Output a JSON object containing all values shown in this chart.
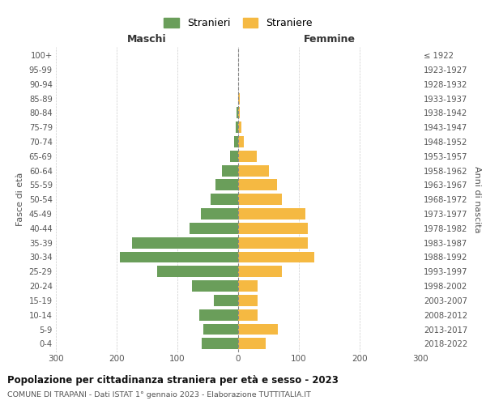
{
  "age_groups": [
    "0-4",
    "5-9",
    "10-14",
    "15-19",
    "20-24",
    "25-29",
    "30-34",
    "35-39",
    "40-44",
    "45-49",
    "50-54",
    "55-59",
    "60-64",
    "65-69",
    "70-74",
    "75-79",
    "80-84",
    "85-89",
    "90-94",
    "95-99",
    "100+"
  ],
  "birth_years": [
    "2018-2022",
    "2013-2017",
    "2008-2012",
    "2003-2007",
    "1998-2002",
    "1993-1997",
    "1988-1992",
    "1983-1987",
    "1978-1982",
    "1973-1977",
    "1968-1972",
    "1963-1967",
    "1958-1962",
    "1953-1957",
    "1948-1952",
    "1943-1947",
    "1938-1942",
    "1933-1937",
    "1928-1932",
    "1923-1927",
    "≤ 1922"
  ],
  "maschi": [
    60,
    57,
    64,
    40,
    76,
    133,
    195,
    175,
    80,
    62,
    46,
    37,
    27,
    13,
    7,
    4,
    3,
    0,
    0,
    0,
    0
  ],
  "femmine": [
    45,
    65,
    32,
    32,
    32,
    72,
    125,
    115,
    115,
    110,
    72,
    64,
    50,
    30,
    9,
    5,
    3,
    2,
    0,
    0,
    0
  ],
  "maschi_color": "#6a9e5a",
  "femmine_color": "#f5b942",
  "background_color": "#ffffff",
  "grid_color": "#cccccc",
  "title": "Popolazione per cittadinanza straniera per età e sesso - 2023",
  "subtitle": "COMUNE DI TRAPANI - Dati ISTAT 1° gennaio 2023 - Elaborazione TUTTITALIA.IT",
  "legend_maschi": "Stranieri",
  "legend_femmine": "Straniere",
  "xlabel_left": "Maschi",
  "xlabel_right": "Femmine",
  "ylabel_left": "Fasce di età",
  "ylabel_right": "Anni di nascita",
  "xlim": 300
}
